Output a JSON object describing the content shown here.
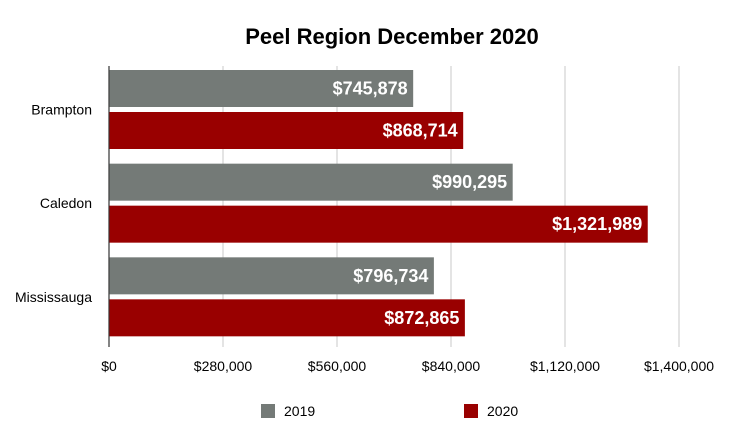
{
  "chart_data": {
    "type": "bar",
    "orientation": "horizontal",
    "title": "Peel Region December 2020",
    "categories": [
      "Brampton",
      "Caledon",
      "Mississauga"
    ],
    "series": [
      {
        "name": "2019",
        "color": "#747a77",
        "values": [
          745878,
          990295,
          796734
        ],
        "labels": [
          "$745,878",
          "$990,295",
          "$796,734"
        ]
      },
      {
        "name": "2020",
        "color": "#990000",
        "values": [
          868714,
          1321989,
          872865
        ],
        "labels": [
          "$868,714",
          "$1,321,989",
          "$872,865"
        ]
      }
    ],
    "xlim": [
      0,
      1400000
    ],
    "xticks": [
      0,
      280000,
      560000,
      840000,
      1120000,
      1400000
    ],
    "xtick_labels": [
      "$0",
      "$280,000",
      "$560,000",
      "$840,000",
      "$1,120,000",
      "$1,400,000"
    ],
    "grid": true,
    "legend_position": "bottom"
  }
}
